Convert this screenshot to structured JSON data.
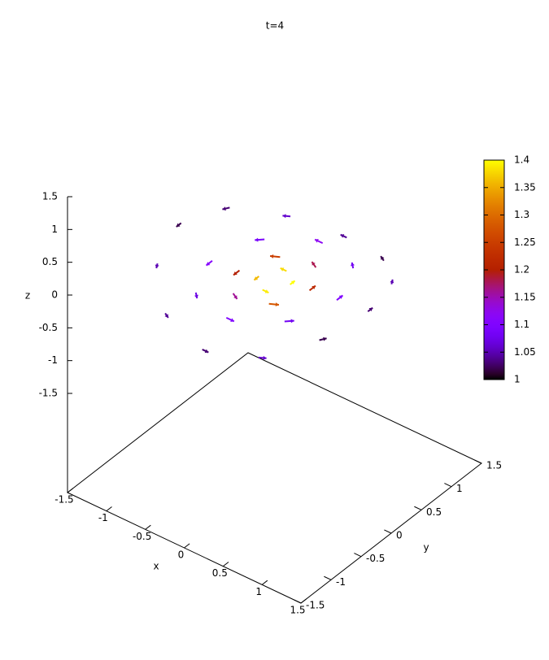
{
  "chart_data": {
    "type": "vector3d",
    "title": "t=4",
    "x_label": "x",
    "y_label": "y",
    "z_label": "z",
    "xlim": [
      -1.5,
      1.5
    ],
    "ylim": [
      -1.5,
      1.5
    ],
    "zlim": [
      -1.5,
      1.5
    ],
    "xticks": [
      -1.5,
      -1,
      -0.5,
      0,
      0.5,
      1,
      1.5
    ],
    "yticks": [
      -1.5,
      -1,
      -0.5,
      0,
      0.5,
      1,
      1.5
    ],
    "zticks": [
      -1.5,
      -1,
      -0.5,
      0,
      0.5,
      1,
      1.5
    ],
    "cblim": [
      1,
      1.4
    ],
    "cbticks": [
      1,
      1.05,
      1.1,
      1.15,
      1.2,
      1.25,
      1.3,
      1.35,
      1.4
    ],
    "vectors": {
      "x": [
        0.2,
        0,
        -0.2,
        0,
        0.45,
        0.23,
        -0.23,
        -0.45,
        -0.23,
        0.23,
        0.8,
        0.57,
        0,
        -0.57,
        -0.8,
        -0.57,
        0,
        0.57,
        1.2,
        1.04,
        0.6,
        0,
        -0.6,
        -1.04,
        -1.2,
        -1.04,
        -0.6,
        0,
        0.6,
        1.04
      ],
      "y": [
        0,
        0.2,
        0,
        -0.2,
        0,
        0.39,
        0.39,
        0,
        -0.39,
        -0.39,
        0,
        0.57,
        0.8,
        0.57,
        0,
        -0.57,
        -0.8,
        -0.57,
        0,
        0.6,
        1.04,
        1.2,
        1.04,
        0.6,
        0,
        -0.6,
        -1.04,
        -1.2,
        -1.04,
        -0.6
      ],
      "z": [
        0.05,
        0,
        -0.05,
        0,
        0.1,
        0.05,
        -0.05,
        -0.1,
        -0.05,
        0.05,
        0.15,
        0.1,
        0,
        -0.1,
        -0.15,
        -0.1,
        0,
        0.1,
        0.2,
        0.1,
        -0.1,
        -0.2,
        -0.1,
        0.1,
        0.2,
        0.1,
        -0.1,
        -0.2,
        -0.1,
        0.1
      ],
      "u": [
        0,
        -0.08,
        0,
        0.08,
        0,
        -0.09,
        -0.09,
        0,
        0.09,
        0.09,
        0,
        -0.07,
        -0.1,
        -0.07,
        0,
        0.07,
        0.1,
        0.07,
        0,
        -0.04,
        -0.07,
        -0.08,
        -0.07,
        -0.04,
        0,
        0.04,
        0.07,
        0.08,
        0.07,
        0.04
      ],
      "v": [
        0.08,
        0,
        -0.08,
        0,
        0.1,
        0.05,
        -0.05,
        -0.1,
        -0.05,
        0.05,
        0.1,
        0.07,
        0,
        -0.07,
        -0.1,
        -0.07,
        0,
        0.07,
        0.08,
        0.07,
        0.04,
        0,
        -0.04,
        -0.07,
        -0.08,
        -0.07,
        -0.04,
        0,
        0.04,
        0.07
      ],
      "w": [
        0,
        0,
        0,
        0,
        0,
        0,
        0,
        0,
        0,
        0,
        0,
        0,
        0,
        0,
        0,
        0,
        0,
        0,
        0,
        0,
        0,
        0,
        0,
        0,
        0,
        0,
        0,
        0,
        0,
        0
      ],
      "c": [
        1.4,
        1.38,
        1.36,
        1.39,
        1.22,
        1.18,
        1.25,
        1.2,
        1.16,
        1.28,
        1.1,
        1.08,
        1.12,
        1.09,
        1.11,
        1.07,
        1.1,
        1.08,
        1.03,
        1.05,
        1.02,
        1.04,
        1.06,
        1.03,
        1.02,
        1.05,
        1.04,
        1.03,
        1.06,
        1.02
      ]
    }
  }
}
